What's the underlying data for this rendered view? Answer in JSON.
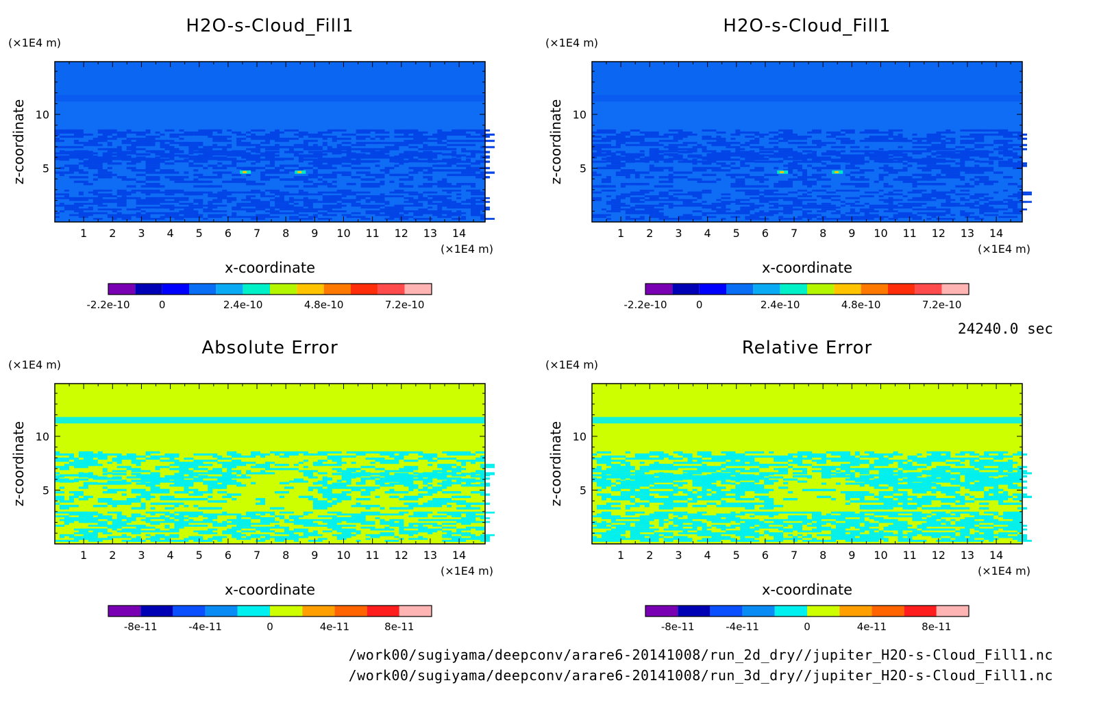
{
  "footer": {
    "time": "24240.0 sec",
    "file1": "/work00/sugiyama/deepconv/arare6-20141008/run_2d_dry//jupiter_H2O-s-Cloud_Fill1.nc",
    "file2": "/work00/sugiyama/deepconv/arare6-20141008/run_3d_dry//jupiter_H2O-s-Cloud_Fill1.nc"
  },
  "colors": {
    "field_background": "#0f6cf5",
    "field_lowband": "#0344e6",
    "field_highlight_cyan": "#00e6c8",
    "error_background": "#cdff00",
    "error_pattern": "#00f0f0"
  },
  "chart_data": [
    {
      "type": "heatmap",
      "title": "H2O-s-Cloud_Fill1",
      "xlabel": "x-coordinate",
      "ylabel": "z-coordinate",
      "x_unit": "(×1E4 m)",
      "y_unit": "(×1E4 m)",
      "xlim": [
        0,
        14.9
      ],
      "ylim": [
        0,
        14.9
      ],
      "x_ticks": [
        "1",
        "2",
        "3",
        "4",
        "5",
        "6",
        "7",
        "8",
        "9",
        "10",
        "11",
        "12",
        "13",
        "14"
      ],
      "y_ticks": [
        "5",
        "10"
      ],
      "colorbar": {
        "colors": [
          "#7a00b4",
          "#0000b4",
          "#0000ff",
          "#0a6ef5",
          "#0aaaf5",
          "#00f0c8",
          "#b4f500",
          "#ffc300",
          "#ff7800",
          "#ff2d0a",
          "#ff4b4b",
          "#ffb4b4"
        ],
        "labels": [
          "-2.2e-10",
          "0",
          "2.4e-10",
          "4.8e-10",
          "7.2e-10"
        ],
        "label_positions": [
          0,
          2,
          5,
          8,
          11
        ]
      }
    },
    {
      "type": "heatmap",
      "title": "H2O-s-Cloud_Fill1",
      "xlabel": "x-coordinate",
      "ylabel": "z-coordinate",
      "x_unit": "(×1E4 m)",
      "y_unit": "(×1E4 m)",
      "xlim": [
        0,
        14.9
      ],
      "ylim": [
        0,
        14.9
      ],
      "x_ticks": [
        "1",
        "2",
        "3",
        "4",
        "5",
        "6",
        "7",
        "8",
        "9",
        "10",
        "11",
        "12",
        "13",
        "14"
      ],
      "y_ticks": [
        "5",
        "10"
      ],
      "colorbar": {
        "colors": [
          "#7a00b4",
          "#0000b4",
          "#0000ff",
          "#0a6ef5",
          "#0aaaf5",
          "#00f0c8",
          "#b4f500",
          "#ffc300",
          "#ff7800",
          "#ff2d0a",
          "#ff4b4b",
          "#ffb4b4"
        ],
        "labels": [
          "-2.2e-10",
          "0",
          "2.4e-10",
          "4.8e-10",
          "7.2e-10"
        ],
        "label_positions": [
          0,
          2,
          5,
          8,
          11
        ]
      }
    },
    {
      "type": "heatmap",
      "title": "Absolute Error",
      "xlabel": "x-coordinate",
      "ylabel": "z-coordinate",
      "x_unit": "(×1E4 m)",
      "y_unit": "(×1E4 m)",
      "xlim": [
        0,
        14.9
      ],
      "ylim": [
        0,
        14.9
      ],
      "x_ticks": [
        "1",
        "2",
        "3",
        "4",
        "5",
        "6",
        "7",
        "8",
        "9",
        "10",
        "11",
        "12",
        "13",
        "14"
      ],
      "y_ticks": [
        "5",
        "10"
      ],
      "colorbar": {
        "colors": [
          "#7a00b4",
          "#0000b4",
          "#0a50ff",
          "#0a8cf5",
          "#00f0f0",
          "#cdff00",
          "#ffa000",
          "#ff6400",
          "#ff1e1e",
          "#ffb4b4"
        ],
        "labels": [
          "-8e-11",
          "-4e-11",
          "0",
          "4e-11",
          "8e-11"
        ],
        "label_positions": [
          1,
          3,
          5,
          7,
          9
        ]
      }
    },
    {
      "type": "heatmap",
      "title": "Relative Error",
      "xlabel": "x-coordinate",
      "ylabel": "z-coordinate",
      "x_unit": "(×1E4 m)",
      "y_unit": "(×1E4 m)",
      "xlim": [
        0,
        14.9
      ],
      "ylim": [
        0,
        14.9
      ],
      "x_ticks": [
        "1",
        "2",
        "3",
        "4",
        "5",
        "6",
        "7",
        "8",
        "9",
        "10",
        "11",
        "12",
        "13",
        "14"
      ],
      "y_ticks": [
        "5",
        "10"
      ],
      "colorbar": {
        "colors": [
          "#7a00b4",
          "#0000b4",
          "#0a50ff",
          "#0a8cf5",
          "#00f0f0",
          "#cdff00",
          "#ffa000",
          "#ff6400",
          "#ff1e1e",
          "#ffb4b4"
        ],
        "labels": [
          "-8e-11",
          "-4e-11",
          "0",
          "4e-11",
          "8e-11"
        ],
        "label_positions": [
          1,
          3,
          5,
          7,
          9
        ]
      }
    }
  ]
}
